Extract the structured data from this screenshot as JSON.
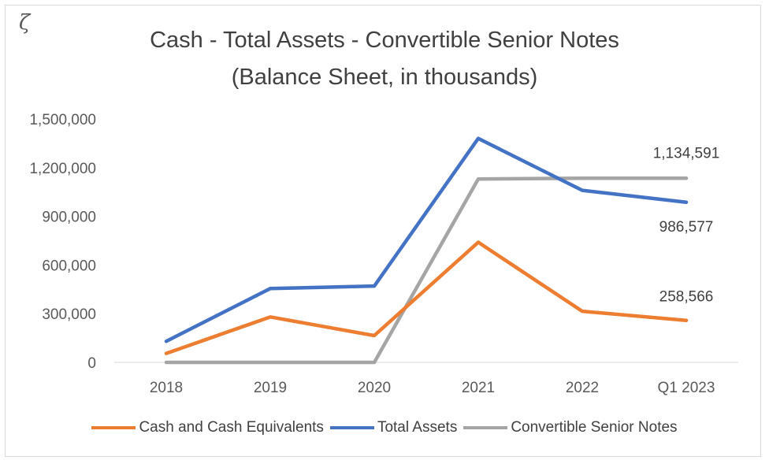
{
  "corner_mark": "ζ",
  "chart_data": {
    "type": "line",
    "title_line1": "Cash - Total Assets - Convertible Senior Notes",
    "title_line2": "(Balance Sheet, in thousands)",
    "categories": [
      "2018",
      "2019",
      "2020",
      "2021",
      "2022",
      "Q1 2023"
    ],
    "ylim": [
      0,
      1500000
    ],
    "yticks": [
      0,
      300000,
      600000,
      900000,
      1200000,
      1500000
    ],
    "ytick_labels": [
      "0",
      "300,000",
      "600,000",
      "900,000",
      "1,200,000",
      "1,500,000"
    ],
    "grid": false,
    "legend_position": "bottom",
    "series": [
      {
        "name": "Cash and Cash Equivalents",
        "color": "#ED7D31",
        "values": [
          55000,
          280000,
          165000,
          740000,
          315000,
          258566
        ]
      },
      {
        "name": "Total Assets",
        "color": "#4472C4",
        "values": [
          130000,
          455000,
          470000,
          1380000,
          1060000,
          986577
        ]
      },
      {
        "name": "Convertible Senior Notes",
        "color": "#A5A5A5",
        "values": [
          0,
          0,
          0,
          1130000,
          1134591,
          1134591
        ]
      }
    ],
    "data_labels": [
      {
        "series": 2,
        "index": 5,
        "text": "1,134,591"
      },
      {
        "series": 1,
        "index": 5,
        "text": "986,577"
      },
      {
        "series": 0,
        "index": 5,
        "text": "258,566"
      }
    ]
  }
}
